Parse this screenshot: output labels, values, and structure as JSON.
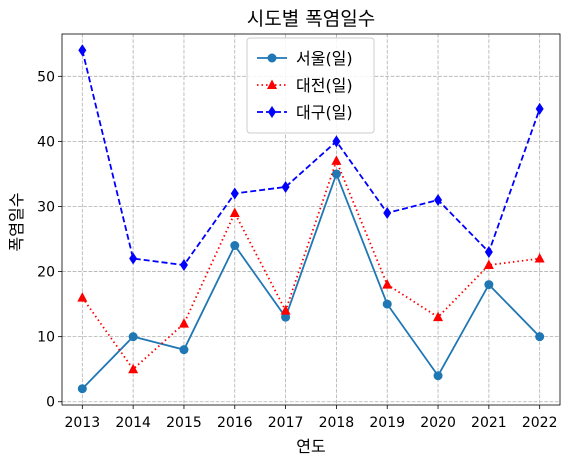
{
  "chart_data": {
    "type": "line",
    "title": "시도별 폭염일수",
    "xlabel": "연도",
    "ylabel": "폭염일수",
    "x": [
      2013,
      2014,
      2015,
      2016,
      2017,
      2018,
      2019,
      2020,
      2021,
      2022
    ],
    "x_tick_labels": [
      "2013",
      "2014",
      "2015",
      "2016",
      "2017",
      "2018",
      "2019",
      "2020",
      "2021",
      "2022"
    ],
    "xlim": [
      2012.6,
      2022.4
    ],
    "ylim": [
      -0.5,
      56.5
    ],
    "y_ticks": [
      0,
      10,
      20,
      30,
      40,
      50
    ],
    "y_tick_labels": [
      "0",
      "10",
      "20",
      "30",
      "40",
      "50"
    ],
    "grid": true,
    "legend_position": "top-center",
    "series": [
      {
        "name": "서울(일)",
        "color": "#1f77b4",
        "line_style": "solid",
        "marker": "circle",
        "values": [
          2,
          10,
          8,
          24,
          13,
          35,
          15,
          4,
          18,
          10
        ]
      },
      {
        "name": "대전(일)",
        "color": "#ff0000",
        "line_style": "dotted",
        "marker": "triangle",
        "values": [
          16,
          5,
          12,
          29,
          14,
          37,
          18,
          13,
          21,
          22
        ]
      },
      {
        "name": "대구(일)",
        "color": "#0000ff",
        "line_style": "dashed",
        "marker": "diamond",
        "values": [
          54,
          22,
          21,
          32,
          33,
          40,
          29,
          31,
          23,
          45
        ]
      }
    ]
  }
}
